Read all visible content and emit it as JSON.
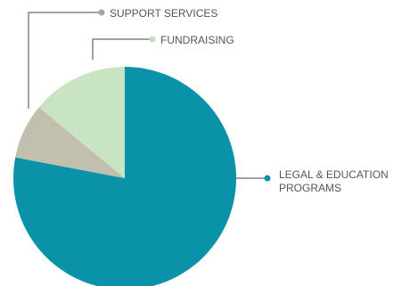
{
  "chart_data": {
    "type": "pie",
    "slices": [
      {
        "label_lines": [
          "LEGAL & EDUCATION",
          "PROGRAMS"
        ],
        "value": 78,
        "color": "#0a93a8",
        "dot_color": "#0a93a8"
      },
      {
        "label_lines": [
          "SUPPORT SERVICES"
        ],
        "value": 8,
        "color": "#c3bfae",
        "dot_color": "#a8a496"
      },
      {
        "label_lines": [
          "FUNDRAISING"
        ],
        "value": 14,
        "color": "#c8e4c3",
        "dot_color": "#c2ddba"
      }
    ],
    "legend": "leader-line labels"
  }
}
